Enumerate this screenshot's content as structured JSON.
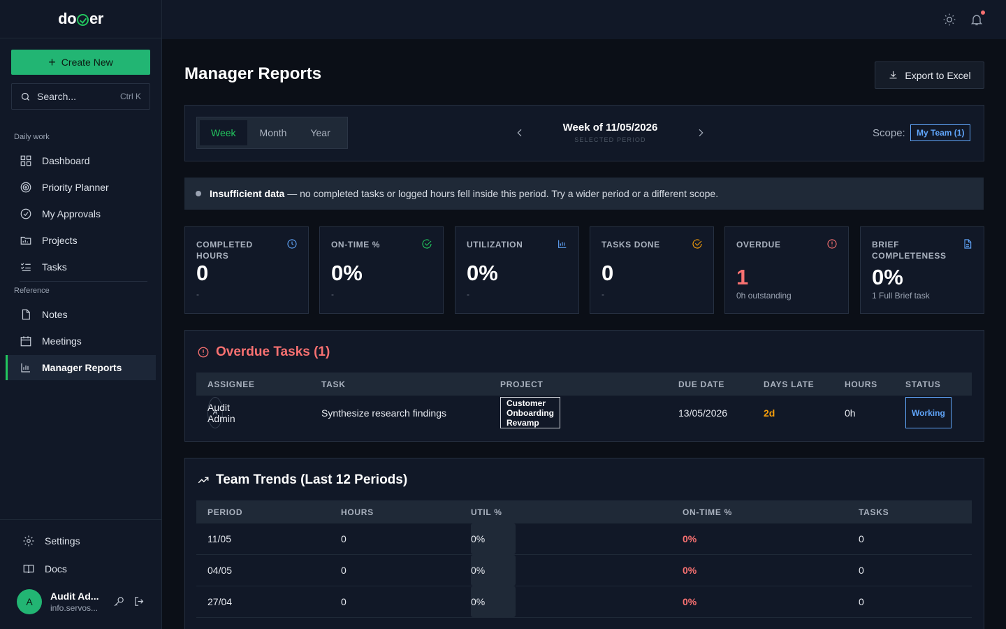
{
  "app": {
    "logo_left": "do",
    "logo_right": "er",
    "create_label": "Create New",
    "search_placeholder": "Search...",
    "search_shortcut": "Ctrl K"
  },
  "sidebar": {
    "section_daily": "Daily work",
    "section_reference": "Reference",
    "items": [
      {
        "label": "Dashboard",
        "icon": "grid-icon"
      },
      {
        "label": "Priority Planner",
        "icon": "target-icon"
      },
      {
        "label": "My Approvals",
        "icon": "check-circle-icon"
      },
      {
        "label": "Projects",
        "icon": "folder-icon"
      },
      {
        "label": "Tasks",
        "icon": "list-check-icon"
      },
      {
        "label": "Notes",
        "icon": "file-icon"
      },
      {
        "label": "Meetings",
        "icon": "calendar-icon"
      },
      {
        "label": "Manager Reports",
        "icon": "bar-chart-icon",
        "active": true
      }
    ],
    "settings_label": "Settings",
    "docs_label": "Docs",
    "user": {
      "initial": "A",
      "name": "Audit Ad...",
      "email": "info.servos..."
    }
  },
  "page": {
    "title": "Manager Reports",
    "export_label": "Export to Excel"
  },
  "period": {
    "tabs": [
      "Week",
      "Month",
      "Year"
    ],
    "selected_tab": "Week",
    "title": "Week of 11/05/2026",
    "subtitle": "SELECTED PERIOD",
    "scope_label": "Scope:",
    "scope_value": "My Team (1)"
  },
  "alert": {
    "bold": "Insufficient data",
    "text": "— no completed tasks or logged hours fell inside this period. Try a wider period or a different scope."
  },
  "kpis": [
    {
      "label": "COMPLETED HOURS",
      "value": "0",
      "sub": "-",
      "icon": "clock-icon",
      "color": "#60a5fa"
    },
    {
      "label": "ON-TIME %",
      "value": "0%",
      "sub": "-",
      "icon": "check-circle-icon",
      "color": "#22c55e"
    },
    {
      "label": "UTILIZATION",
      "value": "0%",
      "sub": "-",
      "icon": "bar-chart-icon",
      "color": "#60a5fa"
    },
    {
      "label": "TASKS DONE",
      "value": "0",
      "sub": "-",
      "icon": "check-circle-icon",
      "color": "#f59e0b"
    },
    {
      "label": "OVERDUE",
      "value": "1",
      "sub": "0h outstanding",
      "icon": "alert-circle-icon",
      "color": "#f87171"
    },
    {
      "label": "BRIEF COMPLETENESS",
      "value": "0%",
      "sub": "1 Full Brief task",
      "icon": "document-icon",
      "color": "#60a5fa"
    }
  ],
  "overdue": {
    "title": "Overdue Tasks (1)",
    "columns": [
      "ASSIGNEE",
      "TASK",
      "PROJECT",
      "DUE DATE",
      "DAYS LATE",
      "HOURS",
      "STATUS"
    ],
    "rows": [
      {
        "initial": "A",
        "assignee": "Audit Admin",
        "task": "Synthesize research findings",
        "project": "Customer Onboarding Revamp",
        "due": "13/05/2026",
        "late": "2d",
        "hours": "0h",
        "status": "Working"
      }
    ]
  },
  "trends": {
    "title": "Team Trends (Last 12 Periods)",
    "columns": [
      "PERIOD",
      "HOURS",
      "UTIL %",
      "ON-TIME %",
      "TASKS"
    ],
    "rows": [
      {
        "period": "11/05",
        "hours": "0",
        "util": "0%",
        "util_fraction": 0,
        "ontime": "0%",
        "tasks": "0"
      },
      {
        "period": "04/05",
        "hours": "0",
        "util": "0%",
        "util_fraction": 0,
        "ontime": "0%",
        "tasks": "0"
      },
      {
        "period": "27/04",
        "hours": "0",
        "util": "0%",
        "util_fraction": 0,
        "ontime": "0%",
        "tasks": "0"
      }
    ]
  },
  "colors": {
    "accent": "#22c55e",
    "link": "#60a5fa",
    "danger": "#f87171",
    "warning": "#f59e0b"
  }
}
